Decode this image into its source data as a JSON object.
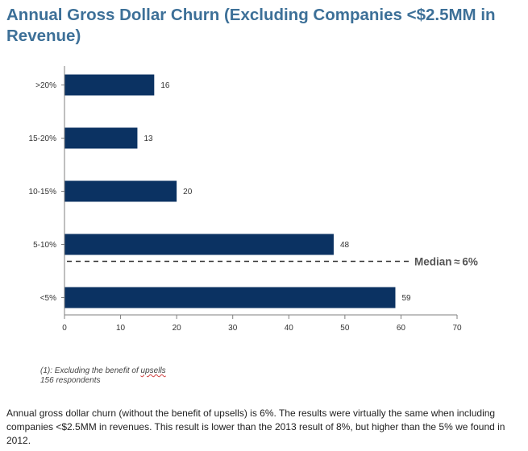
{
  "chart_data": {
    "type": "bar",
    "orientation": "horizontal",
    "title": "Annual Gross Dollar Churn (Excluding Companies <$2.5MM in Revenue)",
    "categories": [
      ">20%",
      "15-20%",
      "10-15%",
      "5-10%",
      "<5%"
    ],
    "values": [
      16,
      13,
      20,
      48,
      59
    ],
    "xlim": [
      0,
      70
    ],
    "xticks": [
      0,
      10,
      20,
      30,
      40,
      50,
      60,
      70
    ],
    "bar_color": "#0b3262",
    "grid": false,
    "annotation": {
      "text": "Median ≈ 6%",
      "style": "dashed-line",
      "between": [
        "5-10%",
        "<5%"
      ]
    }
  },
  "footnote": {
    "line1_prefix": "(1): Excluding the benefit of ",
    "line1_word": "upsells",
    "line2": "156 respondents"
  },
  "caption": "Annual gross dollar churn (without the benefit of upsells) is 6%. The results were virtually the same when including companies <$2.5MM in revenues. This result is lower than the 2013 result of 8%, but higher than the 5% we found in 2012."
}
